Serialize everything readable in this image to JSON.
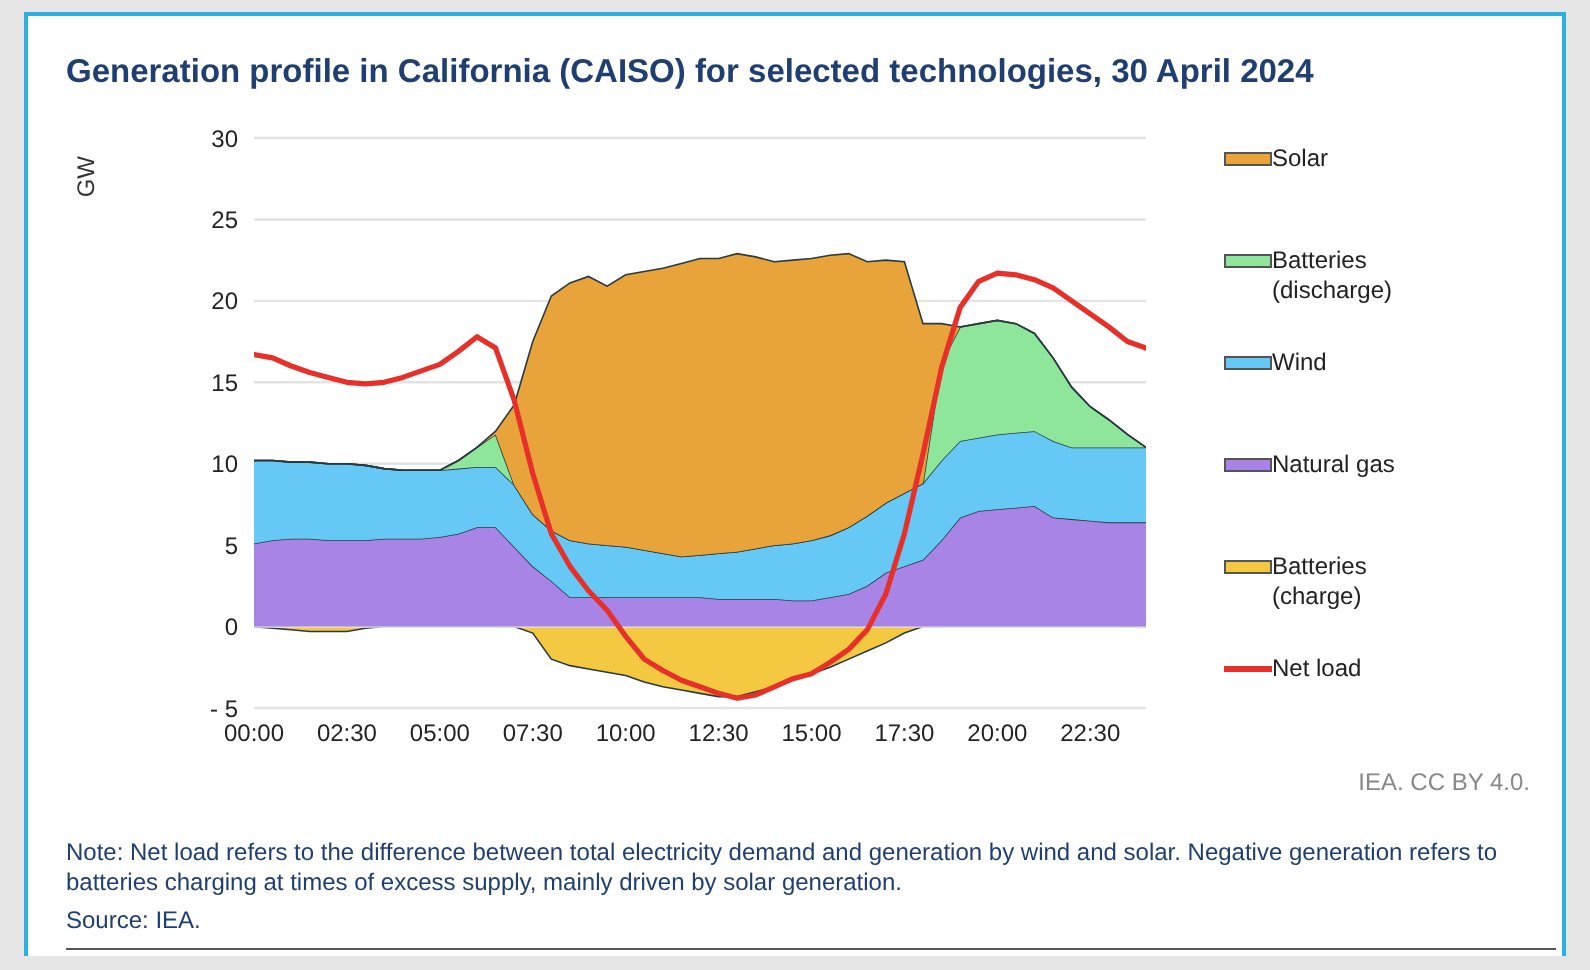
{
  "chart_data": [
    {
      "type": "area",
      "stacked": true,
      "title": "Generation profile in California (CAISO) for selected technologies, 30 April 2024",
      "ylabel": "GW",
      "x": [
        0,
        0.5,
        1,
        1.5,
        2,
        2.5,
        3,
        3.5,
        4,
        4.5,
        5,
        5.5,
        6,
        6.5,
        7,
        7.5,
        8,
        8.5,
        9,
        9.5,
        10,
        10.5,
        11,
        11.5,
        12,
        12.5,
        13,
        13.5,
        14,
        14.5,
        15,
        15.5,
        16,
        16.5,
        17,
        17.5,
        18,
        18.5,
        19,
        19.5,
        20,
        20.5,
        21,
        21.5,
        22,
        22.5,
        23,
        23.5,
        24
      ],
      "xlim": [
        0,
        24
      ],
      "xticks": [
        {
          "value": 0,
          "label": "00:00"
        },
        {
          "value": 2.5,
          "label": "02:30"
        },
        {
          "value": 5,
          "label": "05:00"
        },
        {
          "value": 7.5,
          "label": "07:30"
        },
        {
          "value": 10,
          "label": "10:00"
        },
        {
          "value": 12.5,
          "label": "12:30"
        },
        {
          "value": 15,
          "label": "15:00"
        },
        {
          "value": 17.5,
          "label": "17:30"
        },
        {
          "value": 20,
          "label": "20:00"
        },
        {
          "value": 22.5,
          "label": "22:30"
        }
      ],
      "ylim": [
        -5,
        30
      ],
      "yticks": [
        {
          "value": -5,
          "label": "- 5"
        },
        0,
        5,
        10,
        15,
        20,
        25,
        30
      ],
      "grid": "y",
      "legend": "right",
      "series": [
        {
          "name": "Natural gas",
          "color": "#a884e6",
          "values": [
            5.1,
            5.3,
            5.4,
            5.4,
            5.3,
            5.3,
            5.3,
            5.4,
            5.4,
            5.4,
            5.5,
            5.7,
            6.1,
            6.1,
            4.9,
            3.7,
            2.8,
            1.8,
            1.8,
            1.8,
            1.8,
            1.8,
            1.8,
            1.8,
            1.8,
            1.7,
            1.7,
            1.7,
            1.7,
            1.6,
            1.6,
            1.8,
            2.0,
            2.5,
            3.3,
            3.7,
            4.1,
            5.3,
            6.7,
            7.1,
            7.2,
            7.3,
            7.4,
            6.7,
            6.6,
            6.5,
            6.4,
            6.4,
            6.4
          ]
        },
        {
          "name": "Wind",
          "color": "#66c8f5",
          "values": [
            5.1,
            4.9,
            4.7,
            4.7,
            4.7,
            4.7,
            4.6,
            4.3,
            4.2,
            4.2,
            4.1,
            4.0,
            3.7,
            3.7,
            3.8,
            3.2,
            3.1,
            3.5,
            3.3,
            3.2,
            3.1,
            2.9,
            2.7,
            2.5,
            2.6,
            2.8,
            2.9,
            3.1,
            3.3,
            3.5,
            3.7,
            3.8,
            4.1,
            4.3,
            4.3,
            4.5,
            4.7,
            4.9,
            4.7,
            4.5,
            4.6,
            4.6,
            4.6,
            4.7,
            4.4,
            4.5,
            4.6,
            4.6,
            4.6
          ]
        },
        {
          "name": "Batteries (discharge)",
          "color": "#8de69a",
          "values": [
            0,
            0,
            0,
            0,
            0,
            0,
            0,
            0,
            0,
            0,
            0,
            0.5,
            1.2,
            2.0,
            0,
            0,
            0,
            0,
            0,
            0,
            0,
            0,
            0,
            0,
            0,
            0,
            0,
            0,
            0,
            0,
            0,
            0,
            0,
            0,
            0,
            0,
            0,
            6.0,
            7.0,
            7.0,
            7.0,
            6.7,
            6.0,
            5.1,
            3.7,
            2.5,
            1.7,
            0.8,
            0
          ]
        },
        {
          "name": "Solar",
          "color": "#e8a43a",
          "values": [
            0,
            0,
            0,
            0,
            0,
            0,
            0,
            0,
            0,
            0,
            0,
            0,
            0,
            0.2,
            4.9,
            10.6,
            14.4,
            15.8,
            16.4,
            15.9,
            16.7,
            17.1,
            17.5,
            18.0,
            18.2,
            18.1,
            18.3,
            17.9,
            17.4,
            17.4,
            17.3,
            17.2,
            16.8,
            15.6,
            14.9,
            14.2,
            9.8,
            2.4,
            0,
            0,
            0,
            0,
            0,
            0,
            0,
            0,
            0,
            0,
            0
          ]
        },
        {
          "name": "Net load",
          "type": "line",
          "color": "#e8302a",
          "values": [
            16.7,
            16.5,
            16.0,
            15.6,
            15.3,
            15.0,
            14.9,
            15.0,
            15.3,
            15.7,
            16.1,
            16.9,
            17.8,
            17.1,
            13.9,
            9.4,
            5.7,
            3.7,
            2.2,
            1.0,
            -0.6,
            -2.0,
            -2.7,
            -3.3,
            -3.7,
            -4.1,
            -4.4,
            -4.2,
            -3.7,
            -3.2,
            -2.9,
            -2.2,
            -1.4,
            -0.2,
            2.0,
            5.7,
            10.6,
            15.9,
            19.6,
            21.2,
            21.7,
            21.6,
            21.3,
            20.8,
            20.0,
            19.2,
            18.4,
            17.5,
            17.1
          ]
        }
      ],
      "annotations": [
        "IEA. CC BY 4.0.",
        "Note: Net load refers to the difference between total electricity demand and generation by wind and solar. Negative generation refers to batteries charging at times of excess supply, mainly driven by solar generation.",
        "Source: IEA."
      ]
    },
    {
      "type": "area",
      "x": [
        0,
        0.5,
        1,
        1.5,
        2,
        2.5,
        3,
        3.5,
        4,
        4.5,
        5,
        5.5,
        6,
        6.5,
        7,
        7.5,
        8,
        8.5,
        9,
        9.5,
        10,
        10.5,
        11,
        11.5,
        12,
        12.5,
        13,
        13.5,
        14,
        14.5,
        15,
        15.5,
        16,
        16.5,
        17,
        17.5,
        18,
        18.5,
        19,
        19.5,
        20,
        20.5,
        21,
        21.5,
        22,
        22.5,
        23,
        23.5,
        24
      ],
      "xlim": [
        0,
        24
      ],
      "ylim": [
        -5,
        30
      ],
      "series": [
        {
          "name": "Batteries (charge)",
          "color": "#f5c842",
          "values": [
            0,
            -0.1,
            -0.2,
            -0.3,
            -0.3,
            -0.3,
            -0.1,
            0,
            0,
            0,
            0,
            0,
            0,
            0,
            0,
            -0.4,
            -2.0,
            -2.4,
            -2.6,
            -2.8,
            -3.0,
            -3.4,
            -3.7,
            -3.9,
            -4.1,
            -4.3,
            -4.3,
            -4.0,
            -3.7,
            -3.3,
            -2.9,
            -2.5,
            -2.0,
            -1.5,
            -1.0,
            -0.4,
            0,
            0,
            0,
            0,
            0,
            0,
            0,
            0,
            0,
            0,
            0,
            0,
            0
          ]
        }
      ]
    }
  ]
}
